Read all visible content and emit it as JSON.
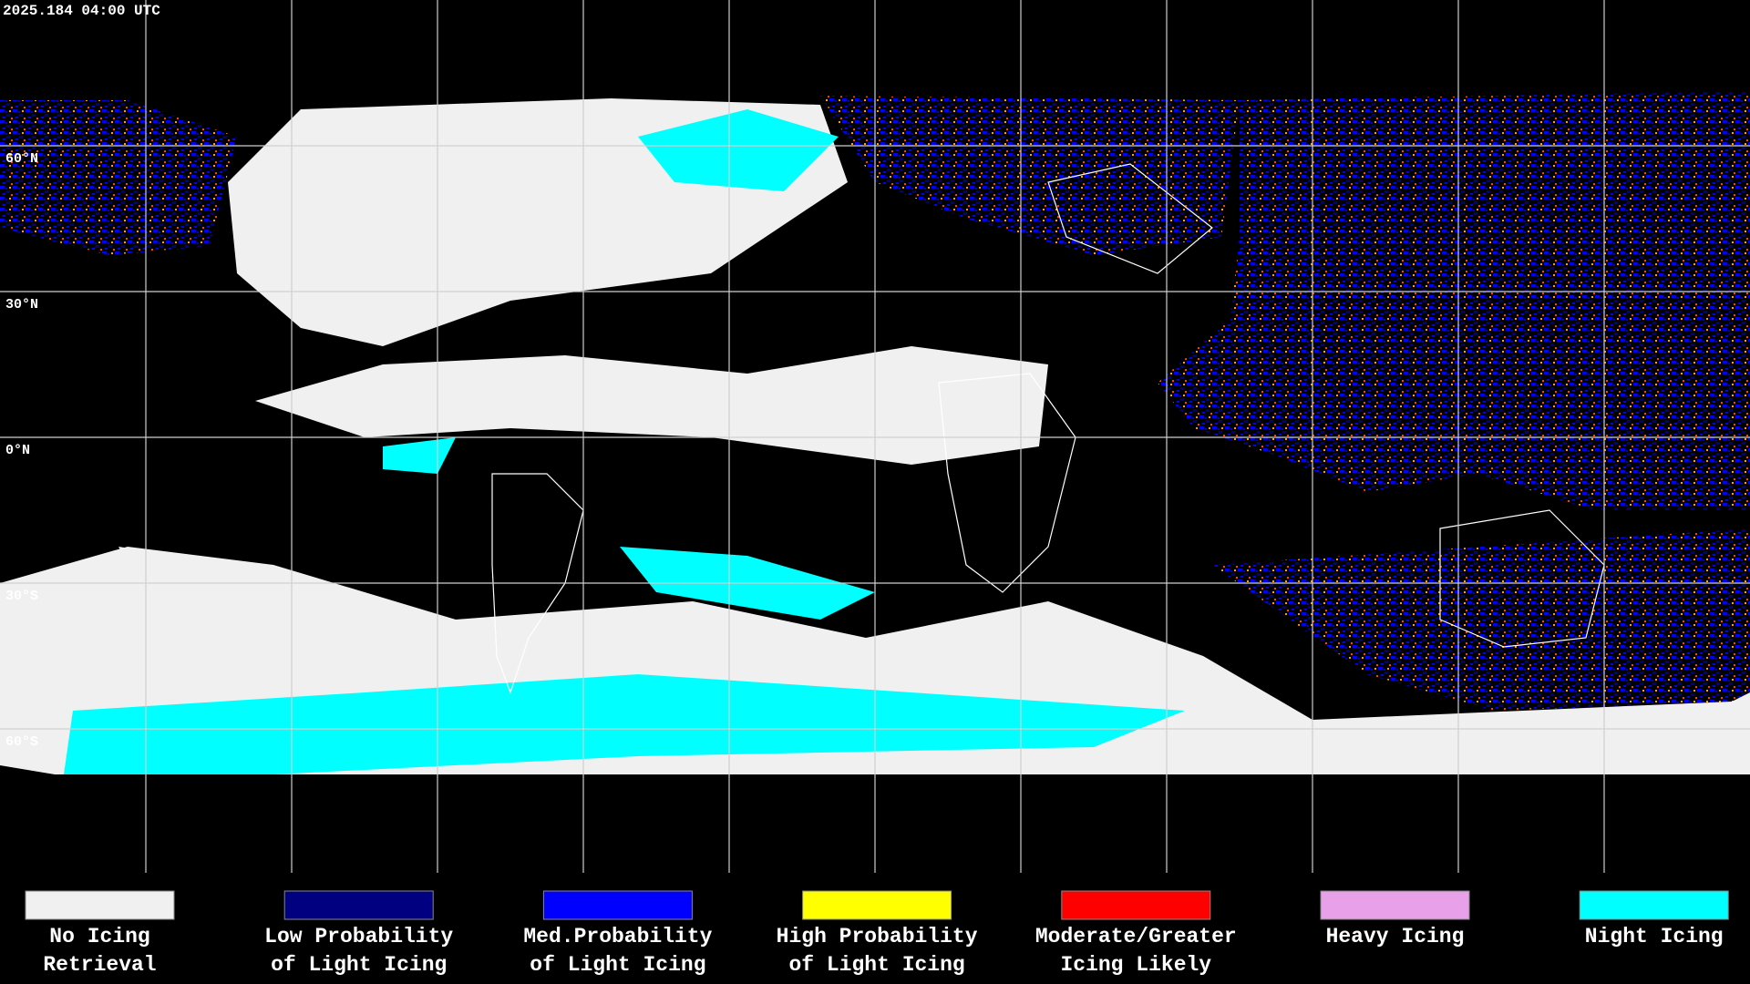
{
  "timestamp": "2025.184 04:00 UTC",
  "latitude_labels": [
    "60°N",
    "30°N",
    "0°N",
    "30°S",
    "60°S"
  ],
  "legend": [
    {
      "lines": [
        "No Icing",
        "Retrieval"
      ],
      "color": "#f0f0f0"
    },
    {
      "lines": [
        "Low Probability",
        "of Light Icing"
      ],
      "color": "#000080"
    },
    {
      "lines": [
        "Med.Probability",
        "of Light Icing"
      ],
      "color": "#0000ff"
    },
    {
      "lines": [
        "High Probability",
        "of Light Icing"
      ],
      "color": "#ffff00"
    },
    {
      "lines": [
        "Moderate/Greater",
        "Icing Likely"
      ],
      "color": "#ff0000"
    },
    {
      "lines": [
        "Heavy Icing"
      ],
      "color": "#e8a0e8"
    },
    {
      "lines": [
        "Night Icing"
      ],
      "color": "#00ffff"
    }
  ]
}
